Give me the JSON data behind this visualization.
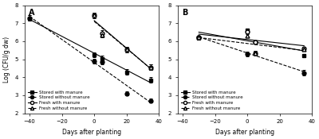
{
  "panel_A": {
    "title": "A",
    "series": {
      "stored_with_manure": {
        "x": [
          -40,
          0,
          5,
          20,
          35
        ],
        "y": [
          7.3,
          5.25,
          5.05,
          4.3,
          3.85
        ],
        "yerr": [
          0.15,
          0.15,
          0.15,
          0.15,
          0.15
        ],
        "marker": "s",
        "linestyle": "-",
        "color": "black",
        "fillstyle": "full",
        "label": "Stored with manure"
      },
      "stored_without_manure": {
        "x": [
          -40,
          0,
          5,
          20,
          35
        ],
        "y": [
          7.3,
          4.9,
          4.85,
          3.1,
          2.7
        ],
        "yerr": [
          0.15,
          0.15,
          0.15,
          0.12,
          0.12
        ],
        "marker": "o",
        "linestyle": "--",
        "color": "black",
        "fillstyle": "full",
        "label": "Stored without manure"
      },
      "fresh_with_manure": {
        "x": [
          0,
          5,
          20,
          35
        ],
        "y": [
          7.45,
          6.45,
          5.55,
          4.55
        ],
        "yerr": [
          0.15,
          0.15,
          0.15,
          0.15
        ],
        "marker": "o",
        "linestyle": "-",
        "color": "black",
        "fillstyle": "none",
        "label": "Fresh with manure"
      },
      "fresh_without_manure": {
        "x": [
          0,
          5,
          20,
          35
        ],
        "y": [
          7.45,
          6.35,
          5.55,
          4.55
        ],
        "yerr": [
          0.15,
          0.15,
          0.15,
          0.15
        ],
        "marker": "^",
        "linestyle": "--",
        "color": "black",
        "fillstyle": "none",
        "label": "Fresh without manure"
      }
    },
    "xlim": [
      -43,
      40
    ],
    "ylim": [
      2,
      8
    ],
    "xticks": [
      -40,
      -20,
      0,
      20,
      40
    ],
    "yticks": [
      2,
      3,
      4,
      5,
      6,
      7,
      8
    ],
    "ylabel": "Log (CFU/g dw)",
    "xlabel": "Days after planting"
  },
  "panel_B": {
    "title": "B",
    "series": {
      "stored_with_manure": {
        "x": [
          -30,
          0,
          5,
          35
        ],
        "y": [
          6.2,
          6.6,
          5.95,
          5.2
        ],
        "yerr": [
          0.1,
          0.1,
          0.1,
          0.1
        ],
        "marker": "s",
        "linestyle": "-",
        "color": "black",
        "fillstyle": "full",
        "label": "Stored with manure"
      },
      "stored_without_manure": {
        "x": [
          -30,
          0,
          5,
          35
        ],
        "y": [
          6.2,
          5.3,
          5.35,
          4.25
        ],
        "yerr": [
          0.1,
          0.12,
          0.12,
          0.15
        ],
        "marker": "o",
        "linestyle": "--",
        "color": "black",
        "fillstyle": "full",
        "label": "Stored without manure"
      },
      "fresh_with_manure": {
        "x": [
          -30,
          0,
          5,
          35
        ],
        "y": [
          6.2,
          6.55,
          5.95,
          5.6
        ],
        "yerr": [
          0.1,
          0.1,
          0.1,
          0.1
        ],
        "marker": "o",
        "linestyle": "-",
        "color": "black",
        "fillstyle": "none",
        "label": "Fresh with manure"
      },
      "fresh_without_manure": {
        "x": [
          -30,
          0,
          5,
          35
        ],
        "y": [
          6.2,
          6.3,
          5.35,
          5.55
        ],
        "yerr": [
          0.1,
          0.1,
          0.12,
          0.1
        ],
        "marker": "^",
        "linestyle": "--",
        "color": "black",
        "fillstyle": "none",
        "label": "Fresh without manure"
      }
    },
    "xlim": [
      -43,
      40
    ],
    "ylim": [
      2,
      8
    ],
    "xticks": [
      -40,
      -20,
      0,
      20,
      40
    ],
    "yticks": [
      2,
      3,
      4,
      5,
      6,
      7,
      8
    ],
    "ylabel": "",
    "xlabel": "Days after planting"
  }
}
